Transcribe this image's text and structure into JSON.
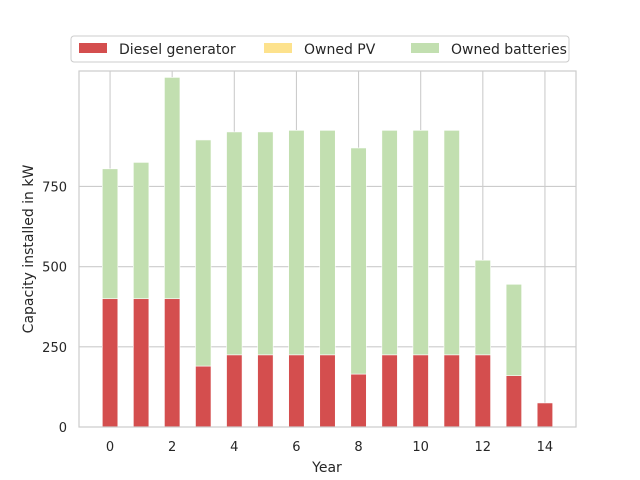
{
  "chart_data": {
    "type": "bar",
    "stacked": true,
    "xlabel": "Year",
    "ylabel": "Capacity installed in kW",
    "categories": [
      "0",
      "1",
      "2",
      "3",
      "4",
      "5",
      "6",
      "7",
      "8",
      "9",
      "10",
      "11",
      "12",
      "13",
      "14"
    ],
    "x_ticks": [
      "0",
      "2",
      "4",
      "6",
      "8",
      "10",
      "12",
      "14"
    ],
    "y_ticks": [
      "0",
      "250",
      "500",
      "750"
    ],
    "ylim": [
      0,
      1110
    ],
    "xlim": [
      -1,
      15
    ],
    "grid": true,
    "legend_position": "top",
    "series": [
      {
        "name": "Diesel generator",
        "color": "#d44e4e",
        "values": [
          400,
          400,
          400,
          190,
          225,
          225,
          225,
          225,
          165,
          225,
          225,
          225,
          225,
          160,
          75
        ]
      },
      {
        "name": "Owned PV",
        "color": "#fde28d",
        "values": [
          0,
          0,
          0,
          0,
          0,
          0,
          0,
          0,
          0,
          0,
          0,
          0,
          0,
          0,
          0
        ]
      },
      {
        "name": "Owned batteries",
        "color": "#c2dfb0",
        "values": [
          405,
          425,
          690,
          705,
          695,
          695,
          700,
          700,
          705,
          700,
          700,
          700,
          295,
          285,
          0
        ]
      }
    ]
  }
}
